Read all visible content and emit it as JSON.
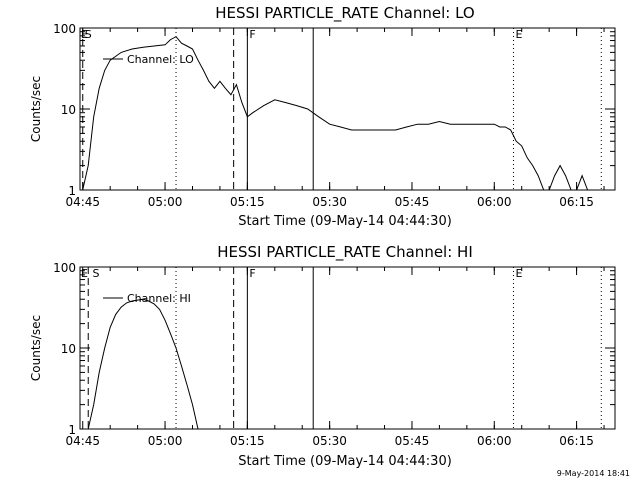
{
  "footer": {
    "timestamp": "9-May-2014 18:41"
  },
  "chart_data": [
    {
      "type": "line",
      "title": "HESSI PARTICLE_RATE Channel: LO",
      "xlabel": "Start Time (09-May-14 04:44:30)",
      "ylabel": "Counts/sec",
      "yscale": "log",
      "xlim": [
        "04:44:30",
        "06:22:00"
      ],
      "ylim": [
        1,
        100
      ],
      "xticks": [
        "04:45",
        "05:00",
        "05:15",
        "05:30",
        "05:45",
        "06:00",
        "06:15"
      ],
      "yticks": [
        "1",
        "10",
        "100"
      ],
      "legend": {
        "label": "Channel: LO",
        "placement": "top-left"
      },
      "markers": [
        {
          "label": "S",
          "time": "04:45:00",
          "style": "dashed",
          "text_label": ""
        },
        {
          "label": "",
          "time": "04:45:00",
          "style": "none",
          "text_label": "S"
        },
        {
          "time": "05:02:00",
          "style": "dotted"
        },
        {
          "time": "05:12:30",
          "style": "dashed"
        },
        {
          "time": "05:15:00",
          "style": "solid",
          "text_label": "F"
        },
        {
          "time": "05:27:00",
          "style": "solid"
        },
        {
          "time": "06:03:30",
          "style": "dotted",
          "text_label": "E"
        },
        {
          "time": "06:19:30",
          "style": "dotted"
        }
      ],
      "corner_labels": [
        {
          "text": "E",
          "time": "04:44:30"
        }
      ],
      "series": [
        {
          "name": "Channel: LO",
          "x": [
            "04:45:00",
            "04:46:00",
            "04:47:00",
            "04:48:00",
            "04:49:00",
            "04:50:00",
            "04:52:00",
            "04:54:00",
            "04:56:00",
            "04:58:00",
            "05:00:00",
            "05:01:00",
            "05:02:00",
            "05:03:00",
            "05:04:00",
            "05:05:00",
            "05:06:00",
            "05:07:00",
            "05:08:00",
            "05:09:00",
            "05:10:00",
            "05:11:00",
            "05:12:00",
            "05:13:00",
            "05:14:00",
            "05:15:00",
            "05:16:00",
            "05:18:00",
            "05:20:00",
            "05:22:00",
            "05:24:00",
            "05:26:00",
            "05:28:00",
            "05:30:00",
            "05:32:00",
            "05:34:00",
            "05:36:00",
            "05:38:00",
            "05:40:00",
            "05:42:00",
            "05:44:00",
            "05:46:00",
            "05:48:00",
            "05:50:00",
            "05:52:00",
            "05:54:00",
            "05:56:00",
            "05:58:00",
            "06:00:00",
            "06:01:00",
            "06:02:00",
            "06:03:00",
            "06:04:00",
            "06:05:00",
            "06:06:00",
            "06:07:00",
            "06:08:00",
            "06:09:00",
            "06:10:00",
            "06:11:00",
            "06:12:00",
            "06:13:00",
            "06:14:00",
            "06:15:00",
            "06:16:00",
            "06:17:00",
            "06:18:00",
            "06:19:00",
            "06:20:00",
            "06:21:00",
            "06:22:00"
          ],
          "y": [
            1,
            2,
            8,
            18,
            30,
            40,
            50,
            55,
            58,
            60,
            62,
            72,
            78,
            65,
            60,
            55,
            40,
            30,
            22,
            18,
            22,
            18,
            15,
            20,
            12,
            8,
            9,
            11,
            13,
            12,
            11,
            10,
            8,
            6.5,
            6,
            5.5,
            5.5,
            5.5,
            5.5,
            5.5,
            6,
            6.5,
            6.5,
            7,
            6.5,
            6.5,
            6.5,
            6.5,
            6.5,
            6,
            6,
            5.5,
            4,
            3.5,
            2.5,
            2,
            1.5,
            1,
            1,
            1.5,
            2,
            1.5,
            1,
            1,
            1.5,
            1,
            1,
            1,
            1,
            1,
            1
          ]
        }
      ]
    },
    {
      "type": "line",
      "title": "HESSI PARTICLE_RATE Channel: HI",
      "xlabel": "Start Time (09-May-14 04:44:30)",
      "ylabel": "Counts/sec",
      "yscale": "log",
      "xlim": [
        "04:44:30",
        "06:22:00"
      ],
      "ylim": [
        1,
        100
      ],
      "xticks": [
        "04:45",
        "05:00",
        "05:15",
        "05:30",
        "05:45",
        "06:00",
        "06:15"
      ],
      "yticks": [
        "1",
        "10",
        "100"
      ],
      "legend": {
        "label": "Channel: HI",
        "placement": "top-left"
      },
      "markers": [
        {
          "time": "04:46:00",
          "style": "dashed"
        },
        {
          "time": "05:02:00",
          "style": "dotted"
        },
        {
          "time": "05:12:30",
          "style": "dashed"
        },
        {
          "time": "05:15:00",
          "style": "solid",
          "text_label": "F"
        },
        {
          "time": "05:27:00",
          "style": "solid"
        },
        {
          "time": "06:03:30",
          "style": "dotted",
          "text_label": "E"
        },
        {
          "time": "06:19:30",
          "style": "dotted"
        }
      ],
      "corner_labels": [
        {
          "text": "E",
          "time": "04:44:30"
        },
        {
          "text": "S",
          "time": "04:45:30"
        }
      ],
      "series": [
        {
          "name": "Channel: HI",
          "x": [
            "04:46:00",
            "04:47:00",
            "04:48:00",
            "04:49:00",
            "04:50:00",
            "04:51:00",
            "04:52:00",
            "04:53:00",
            "04:54:00",
            "04:55:00",
            "04:56:00",
            "04:57:00",
            "04:58:00",
            "04:59:00",
            "05:00:00",
            "05:01:00",
            "05:02:00",
            "05:03:00",
            "05:04:00",
            "05:05:00",
            "05:06:00"
          ],
          "y": [
            1,
            2,
            5,
            10,
            18,
            26,
            32,
            36,
            38,
            39,
            40,
            38,
            35,
            30,
            22,
            15,
            10,
            6,
            3.5,
            2,
            1
          ]
        }
      ]
    }
  ]
}
